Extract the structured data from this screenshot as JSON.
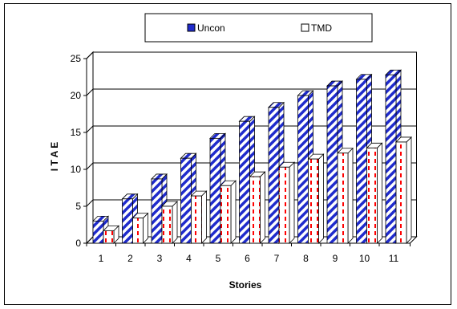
{
  "chart_data": {
    "type": "bar",
    "style": "3d-clustered-column",
    "categories": [
      "1",
      "2",
      "3",
      "4",
      "5",
      "6",
      "7",
      "8",
      "9",
      "10",
      "11"
    ],
    "series": [
      {
        "name": "Uncon",
        "values": [
          3.0,
          6.0,
          8.7,
          11.5,
          14.2,
          16.5,
          18.4,
          20.0,
          21.3,
          22.2,
          22.8
        ],
        "color": "#1f2bcc",
        "pattern": "diagonal-stripes"
      },
      {
        "name": "TMD",
        "values": [
          1.7,
          3.4,
          5.0,
          6.4,
          7.8,
          9.0,
          10.3,
          11.4,
          12.2,
          12.9,
          13.7
        ],
        "color": "#ff0000",
        "pattern": "dashed-vertical"
      }
    ],
    "xlabel": "Stories",
    "ylabel": "I T A E",
    "ylim": [
      0,
      25
    ],
    "yticks": [
      0,
      5,
      10,
      15,
      20,
      25
    ],
    "grid": true,
    "legend": "top-center"
  }
}
